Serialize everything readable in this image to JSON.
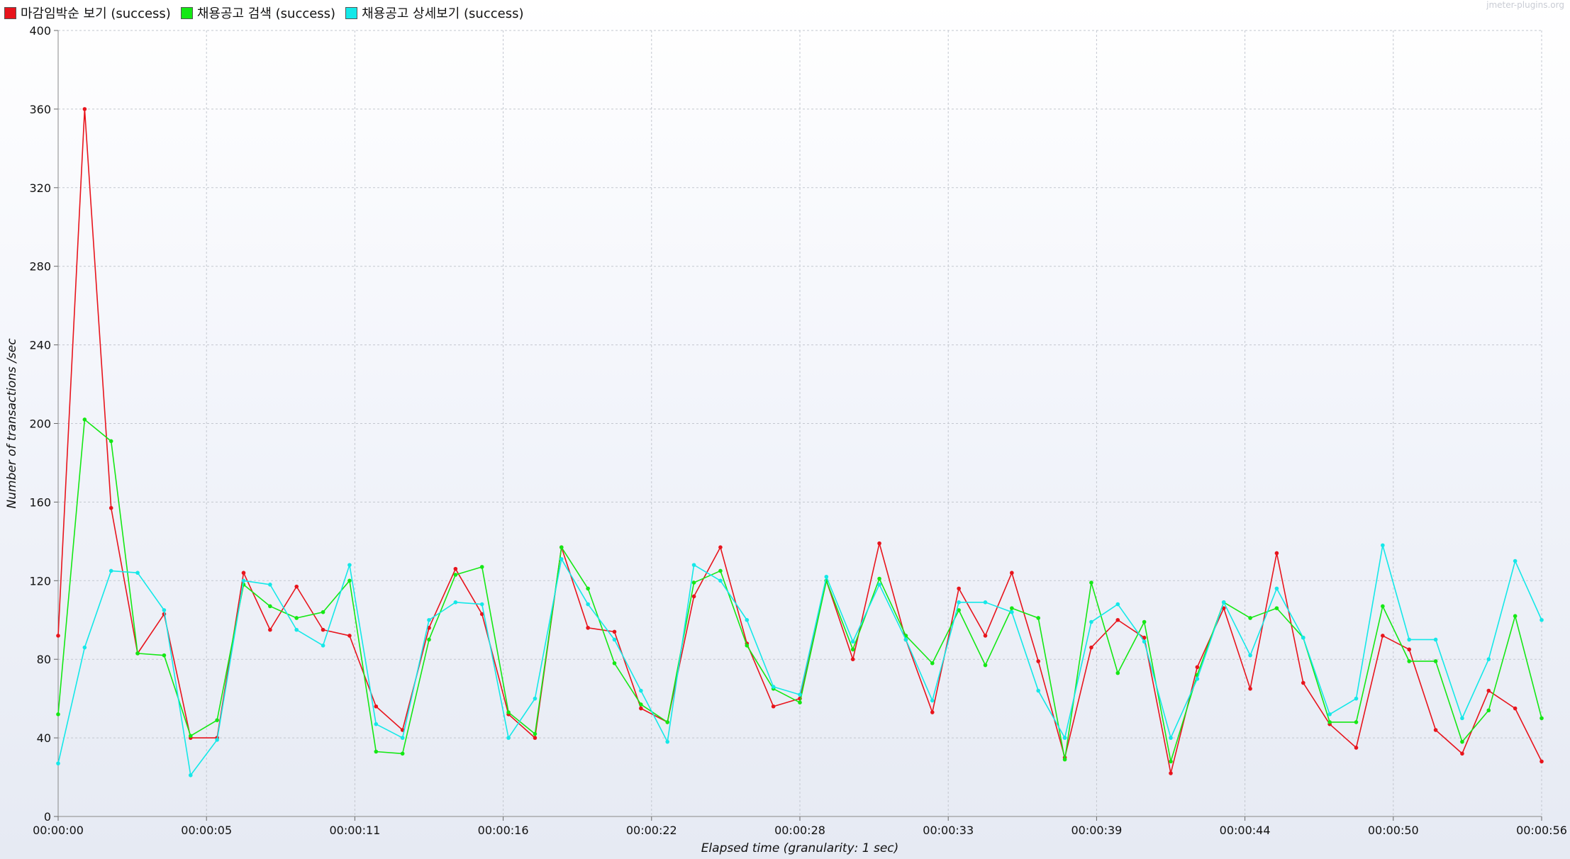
{
  "watermark": "jmeter-plugins.org",
  "chart_data": {
    "type": "line",
    "xlabel": "Elapsed time (granularity: 1 sec)",
    "ylabel": "Number of transactions /sec",
    "ylim": [
      0,
      400
    ],
    "y_ticks": [
      0,
      40,
      80,
      120,
      160,
      200,
      240,
      280,
      320,
      360,
      400
    ],
    "x_tick_labels": [
      "00:00:00",
      "00:00:05",
      "00:00:11",
      "00:00:16",
      "00:00:22",
      "00:00:28",
      "00:00:33",
      "00:00:39",
      "00:00:44",
      "00:00:50",
      "00:00:56"
    ],
    "x_unit": "seconds",
    "xlim": [
      0,
      56
    ],
    "grid": true,
    "legend_position": "top-left",
    "series": [
      {
        "name": "마감임박순 보기 (success)",
        "color": "#e8141c",
        "values": [
          92,
          360,
          157,
          83,
          103,
          40,
          40,
          124,
          95,
          117,
          95,
          92,
          56,
          44,
          96,
          126,
          103,
          52,
          40,
          137,
          96,
          94,
          55,
          48,
          112,
          137,
          88,
          56,
          60,
          120,
          80,
          139,
          90,
          53,
          116,
          92,
          124,
          79,
          30,
          86,
          100,
          91,
          22,
          76,
          106,
          65,
          134,
          68,
          47,
          35,
          92,
          85,
          44,
          32,
          64,
          55,
          28
        ]
      },
      {
        "name": "채용공고 검색 (success)",
        "color": "#14e814",
        "values": [
          52,
          202,
          191,
          83,
          82,
          41,
          49,
          118,
          107,
          101,
          104,
          120,
          33,
          32,
          90,
          123,
          127,
          53,
          42,
          137,
          116,
          78,
          57,
          48,
          119,
          125,
          87,
          65,
          58,
          120,
          85,
          121,
          92,
          78,
          105,
          77,
          106,
          101,
          29,
          119,
          73,
          99,
          28,
          72,
          109,
          101,
          106,
          91,
          48,
          48,
          107,
          79,
          79,
          38,
          54,
          102,
          50
        ]
      },
      {
        "name": "채용공고 상세보기 (success)",
        "color": "#14e8e8",
        "values": [
          27,
          86,
          125,
          124,
          105,
          21,
          39,
          120,
          118,
          95,
          87,
          128,
          47,
          40,
          100,
          109,
          108,
          40,
          60,
          131,
          108,
          90,
          64,
          38,
          128,
          120,
          100,
          66,
          62,
          122,
          89,
          118,
          90,
          59,
          109,
          109,
          104,
          64,
          40,
          99,
          108,
          89,
          40,
          70,
          109,
          82,
          116,
          91,
          52,
          60,
          138,
          90,
          90,
          50,
          80,
          130,
          100
        ]
      }
    ]
  }
}
